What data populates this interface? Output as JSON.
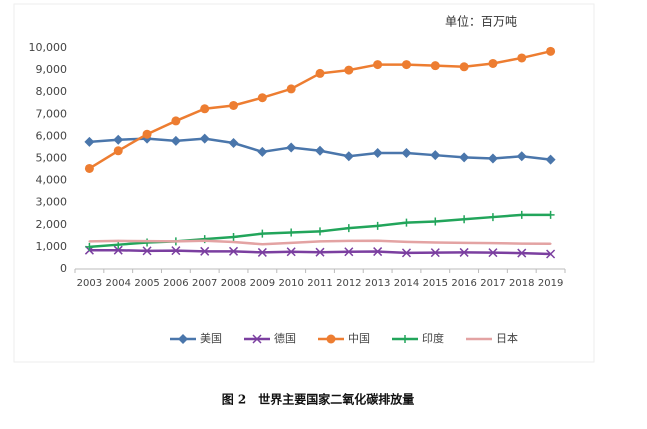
{
  "chart_data": {
    "type": "line",
    "title": "图 2　世界主要国家二氧化碳排放量",
    "unit_label": "单位：百万吨",
    "categories": [
      "2003",
      "2004",
      "2005",
      "2006",
      "2007",
      "2008",
      "2009",
      "2010",
      "2011",
      "2012",
      "2013",
      "2014",
      "2015",
      "2016",
      "2017",
      "2018",
      "2019"
    ],
    "ylim": [
      0,
      10000
    ],
    "yticks": [
      0,
      {
        "value": 1000,
        "label": "1,000"
      },
      {
        "value": 2000,
        "label": "2,000"
      },
      {
        "value": 3000,
        "label": "3,000"
      },
      {
        "value": 4000,
        "label": "4,000"
      },
      {
        "value": 5000,
        "label": "5,000"
      },
      {
        "value": 6000,
        "label": "6,000"
      },
      {
        "value": 7000,
        "label": "7,000"
      },
      {
        "value": 8000,
        "label": "8,000"
      },
      {
        "value": 9000,
        "label": "9,000"
      },
      {
        "value": 10000,
        "label": "10,000"
      }
    ],
    "grid": false,
    "legend": "bottom",
    "series": [
      {
        "name": "美国",
        "color": "#4a76ab",
        "marker": "diamond",
        "values": [
          5750,
          5850,
          5900,
          5800,
          5900,
          5700,
          5300,
          5500,
          5350,
          5100,
          5250,
          5250,
          5150,
          5050,
          5000,
          5100,
          4950
        ]
      },
      {
        "name": "德国",
        "color": "#7b3fa0",
        "marker": "x",
        "values": [
          850,
          850,
          820,
          830,
          800,
          800,
          750,
          780,
          760,
          780,
          790,
          730,
          740,
          750,
          740,
          720,
          680
        ]
      },
      {
        "name": "中国",
        "color": "#ed7d31",
        "marker": "circle",
        "values": [
          4550,
          5350,
          6100,
          6700,
          7250,
          7400,
          7750,
          8150,
          8850,
          9000,
          9250,
          9250,
          9200,
          9150,
          9300,
          9550,
          9850
        ]
      },
      {
        "name": "印度",
        "color": "#22a55b",
        "marker": "plus",
        "values": [
          1000,
          1100,
          1200,
          1250,
          1350,
          1450,
          1600,
          1650,
          1700,
          1850,
          1950,
          2100,
          2150,
          2250,
          2350,
          2450,
          2450
        ]
      },
      {
        "name": "日本",
        "color": "#e3a3a3",
        "marker": "none",
        "values": [
          1250,
          1270,
          1260,
          1250,
          1280,
          1220,
          1120,
          1180,
          1250,
          1270,
          1280,
          1230,
          1200,
          1180,
          1170,
          1150,
          1140
        ]
      }
    ]
  }
}
